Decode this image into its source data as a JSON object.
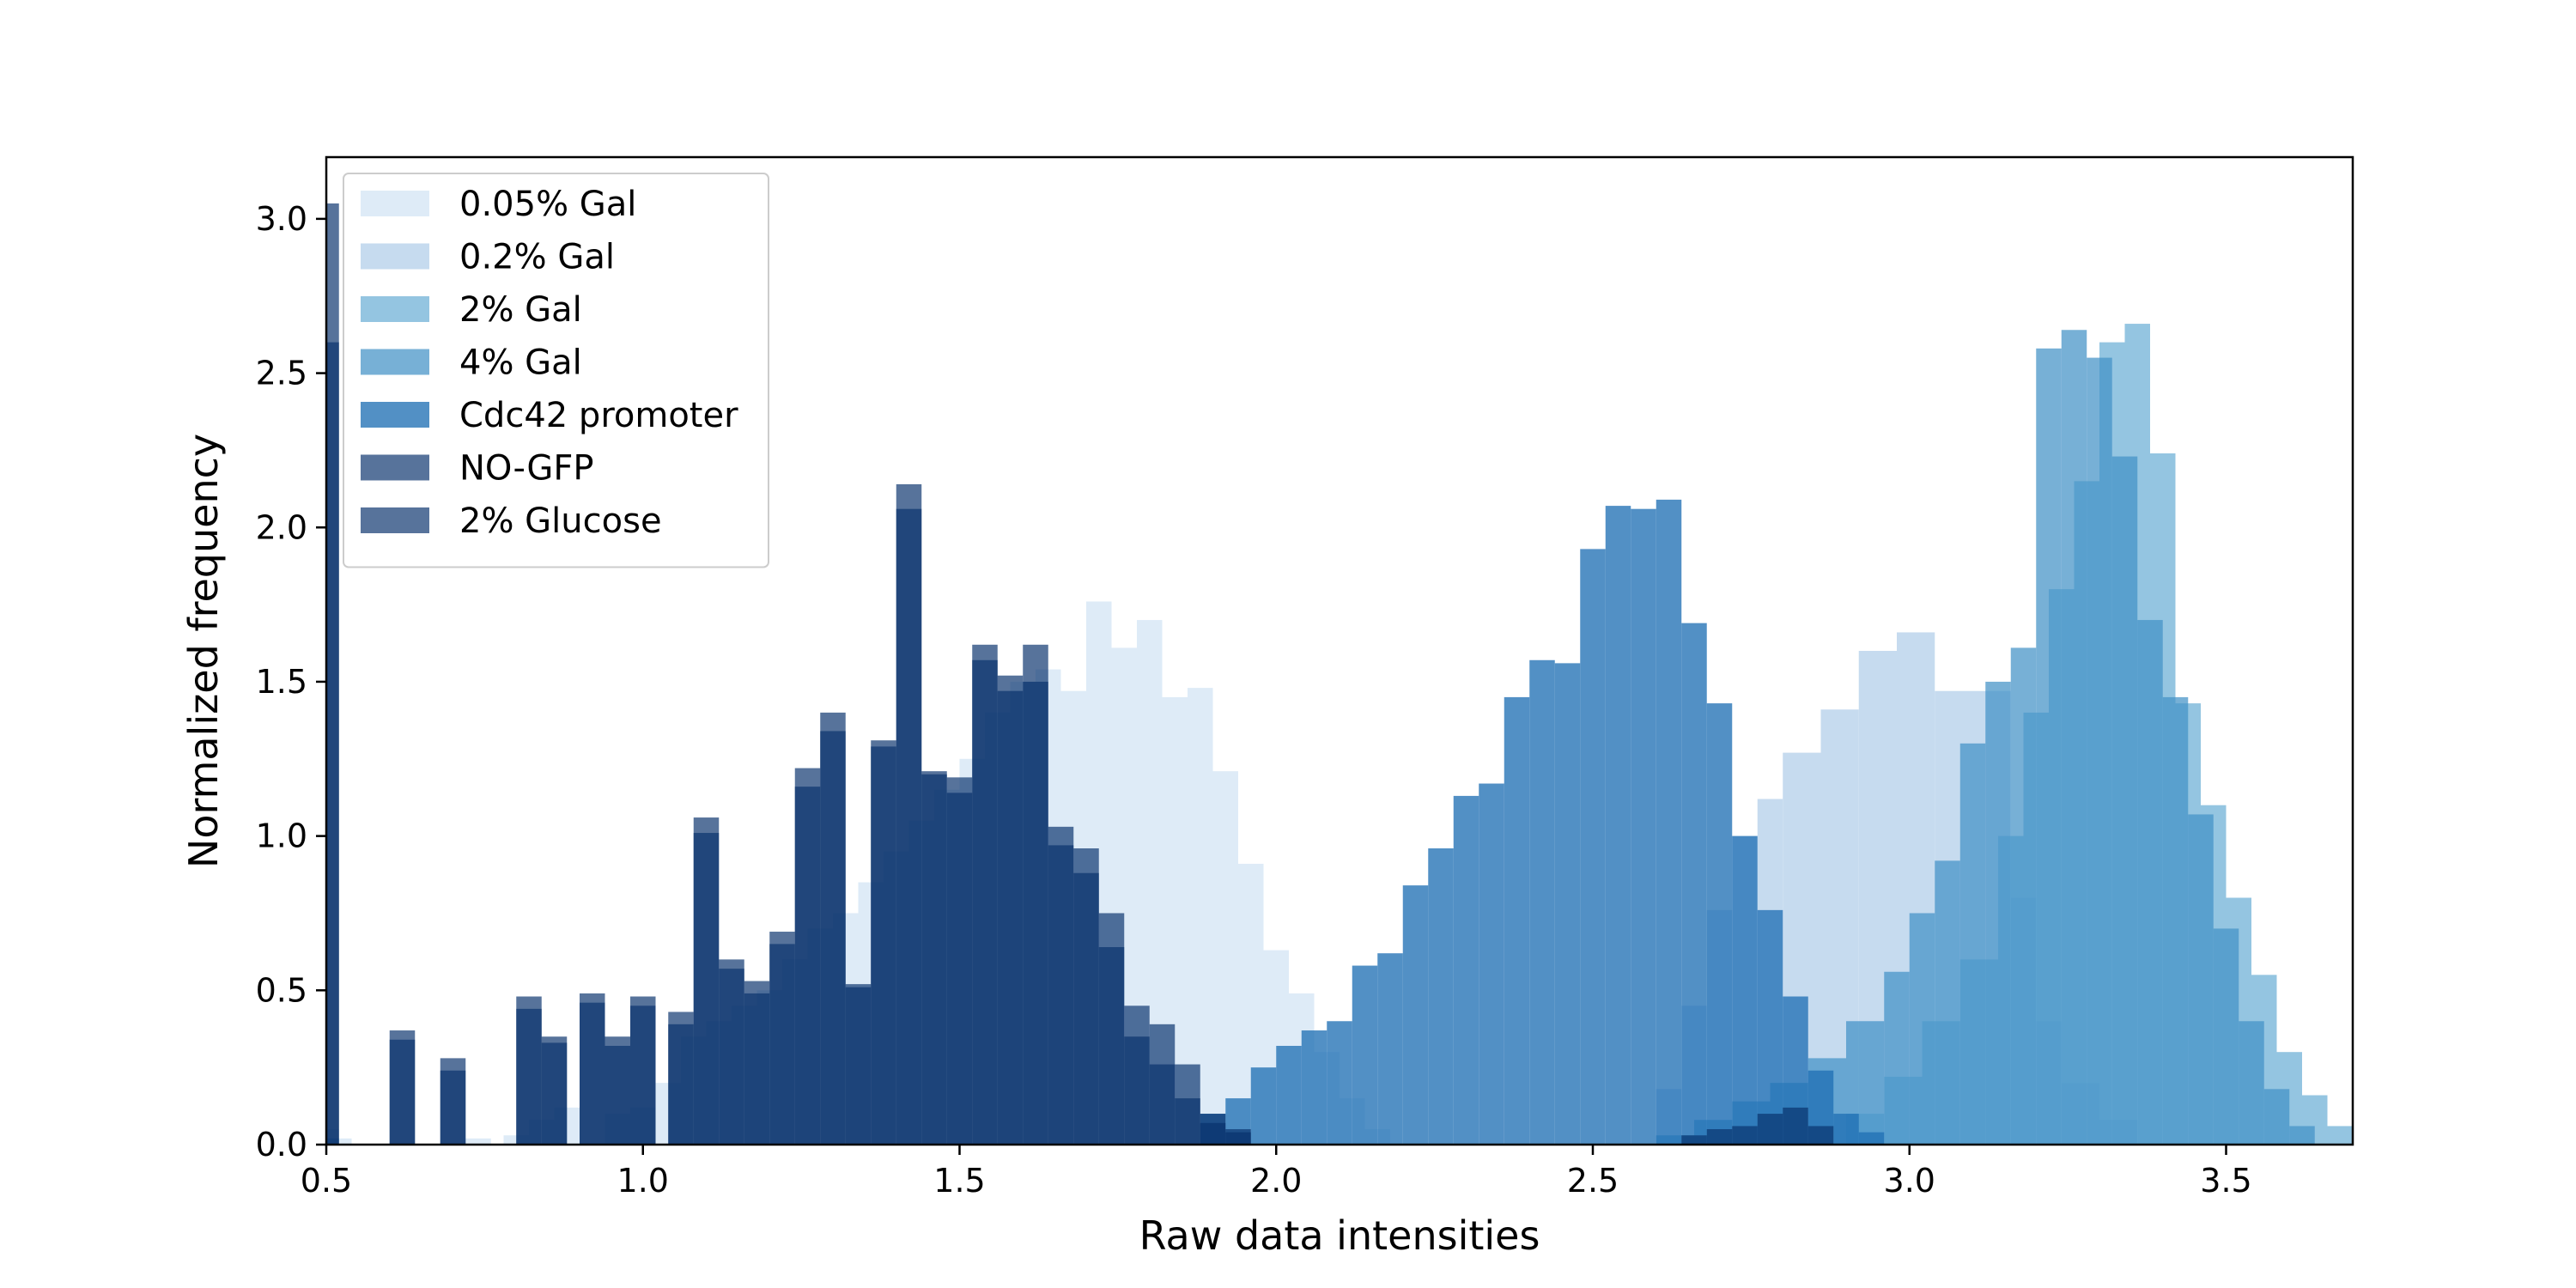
{
  "chart_data": {
    "type": "bar",
    "title": "",
    "xlabel": "Raw data intensities",
    "ylabel": "Normalized frequency",
    "xlim": [
      0.5,
      3.7
    ],
    "ylim": [
      0.0,
      3.2
    ],
    "x_ticks": [
      "0.5",
      "1.0",
      "1.5",
      "2.0",
      "2.5",
      "3.0",
      "3.5"
    ],
    "y_ticks": [
      "0.0",
      "0.5",
      "1.0",
      "1.5",
      "2.0",
      "2.5",
      "3.0"
    ],
    "grid": false,
    "legend_position": "top-left",
    "series": [
      {
        "name": "0.05% Gal",
        "color": "#deebf7",
        "bins": [
          [
            0.5,
            0.52,
            0.05
          ],
          [
            0.52,
            0.54,
            0.02
          ],
          [
            0.72,
            0.76,
            0.02
          ],
          [
            0.78,
            0.82,
            0.03
          ],
          [
            0.82,
            0.86,
            0.08
          ],
          [
            0.86,
            0.9,
            0.12
          ],
          [
            0.94,
            0.98,
            0.1
          ],
          [
            0.98,
            1.02,
            0.12
          ],
          [
            1.02,
            1.06,
            0.2
          ],
          [
            1.06,
            1.1,
            0.35
          ],
          [
            1.1,
            1.14,
            0.4
          ],
          [
            1.14,
            1.18,
            0.45
          ],
          [
            1.18,
            1.22,
            0.5
          ],
          [
            1.22,
            1.26,
            0.6
          ],
          [
            1.26,
            1.3,
            0.7
          ],
          [
            1.3,
            1.34,
            0.75
          ],
          [
            1.34,
            1.38,
            0.85
          ],
          [
            1.38,
            1.42,
            0.95
          ],
          [
            1.42,
            1.46,
            1.05
          ],
          [
            1.46,
            1.5,
            1.15
          ],
          [
            1.5,
            1.54,
            1.25
          ],
          [
            1.54,
            1.58,
            1.4
          ],
          [
            1.58,
            1.62,
            1.5
          ],
          [
            1.62,
            1.66,
            1.54
          ],
          [
            1.66,
            1.7,
            1.47
          ],
          [
            1.7,
            1.74,
            1.76
          ],
          [
            1.74,
            1.78,
            1.61
          ],
          [
            1.78,
            1.82,
            1.7
          ],
          [
            1.82,
            1.86,
            1.45
          ],
          [
            1.86,
            1.9,
            1.48
          ],
          [
            1.9,
            1.94,
            1.21
          ],
          [
            1.94,
            1.98,
            0.91
          ],
          [
            1.98,
            2.02,
            0.63
          ],
          [
            2.02,
            2.06,
            0.49
          ],
          [
            2.06,
            2.1,
            0.3
          ],
          [
            2.1,
            2.14,
            0.15
          ],
          [
            2.14,
            2.18,
            0.05
          ]
        ]
      },
      {
        "name": "0.2% Gal",
        "color": "#c6dbef",
        "bins": [
          [
            2.6,
            2.64,
            0.18
          ],
          [
            2.64,
            2.68,
            0.45
          ],
          [
            2.68,
            2.72,
            0.76
          ],
          [
            2.72,
            2.76,
            1.0
          ],
          [
            2.76,
            2.8,
            1.12
          ],
          [
            2.8,
            2.86,
            1.27
          ],
          [
            2.86,
            2.92,
            1.41
          ],
          [
            2.92,
            2.98,
            1.6
          ],
          [
            2.98,
            3.04,
            1.66
          ],
          [
            3.04,
            3.1,
            1.47
          ],
          [
            3.1,
            3.16,
            1.47
          ],
          [
            3.16,
            3.2,
            0.8
          ],
          [
            3.2,
            3.24,
            0.4
          ],
          [
            3.24,
            3.3,
            0.2
          ],
          [
            3.3,
            3.36,
            0.08
          ]
        ]
      },
      {
        "name": "2% Gal",
        "color": "#6baed6",
        "opacity": 0.72,
        "bins": [
          [
            0.5,
            0.52,
            0.02
          ],
          [
            2.9,
            2.96,
            0.1
          ],
          [
            2.96,
            3.02,
            0.22
          ],
          [
            3.02,
            3.08,
            0.4
          ],
          [
            3.08,
            3.14,
            0.6
          ],
          [
            3.14,
            3.18,
            1.0
          ],
          [
            3.18,
            3.22,
            1.4
          ],
          [
            3.22,
            3.26,
            1.8
          ],
          [
            3.26,
            3.3,
            2.15
          ],
          [
            3.3,
            3.34,
            2.6
          ],
          [
            3.34,
            3.38,
            2.66
          ],
          [
            3.38,
            3.42,
            2.24
          ],
          [
            3.42,
            3.46,
            1.43
          ],
          [
            3.46,
            3.5,
            1.1
          ],
          [
            3.5,
            3.54,
            0.8
          ],
          [
            3.54,
            3.58,
            0.55
          ],
          [
            3.58,
            3.62,
            0.3
          ],
          [
            3.62,
            3.66,
            0.16
          ],
          [
            3.66,
            3.7,
            0.06
          ]
        ]
      },
      {
        "name": "4% Gal",
        "color": "#4292c6",
        "opacity": 0.72,
        "bins": [
          [
            2.6,
            2.66,
            0.03
          ],
          [
            2.66,
            2.72,
            0.08
          ],
          [
            2.72,
            2.78,
            0.14
          ],
          [
            2.78,
            2.84,
            0.2
          ],
          [
            2.84,
            2.9,
            0.28
          ],
          [
            2.9,
            2.96,
            0.4
          ],
          [
            2.96,
            3.0,
            0.56
          ],
          [
            3.0,
            3.04,
            0.75
          ],
          [
            3.04,
            3.08,
            0.92
          ],
          [
            3.08,
            3.12,
            1.3
          ],
          [
            3.12,
            3.16,
            1.5
          ],
          [
            3.16,
            3.2,
            1.61
          ],
          [
            3.2,
            3.24,
            2.58
          ],
          [
            3.24,
            3.28,
            2.64
          ],
          [
            3.28,
            3.32,
            2.55
          ],
          [
            3.32,
            3.36,
            2.23
          ],
          [
            3.36,
            3.4,
            1.7
          ],
          [
            3.4,
            3.44,
            1.45
          ],
          [
            3.44,
            3.48,
            1.07
          ],
          [
            3.48,
            3.52,
            0.7
          ],
          [
            3.52,
            3.56,
            0.4
          ],
          [
            3.56,
            3.6,
            0.18
          ],
          [
            3.6,
            3.64,
            0.06
          ]
        ]
      },
      {
        "name": "Cdc42 promoter",
        "color": "#2171b5",
        "opacity": 0.78,
        "bins": [
          [
            1.88,
            1.92,
            0.1
          ],
          [
            1.92,
            1.96,
            0.15
          ],
          [
            1.96,
            2.0,
            0.25
          ],
          [
            2.0,
            2.04,
            0.32
          ],
          [
            2.04,
            2.08,
            0.37
          ],
          [
            2.08,
            2.12,
            0.4
          ],
          [
            2.12,
            2.16,
            0.58
          ],
          [
            2.16,
            2.2,
            0.62
          ],
          [
            2.2,
            2.24,
            0.84
          ],
          [
            2.24,
            2.28,
            0.96
          ],
          [
            2.28,
            2.32,
            1.13
          ],
          [
            2.32,
            2.36,
            1.17
          ],
          [
            2.36,
            2.4,
            1.45
          ],
          [
            2.4,
            2.44,
            1.57
          ],
          [
            2.44,
            2.48,
            1.56
          ],
          [
            2.48,
            2.52,
            1.93
          ],
          [
            2.52,
            2.56,
            2.07
          ],
          [
            2.56,
            2.6,
            2.06
          ],
          [
            2.6,
            2.64,
            2.09
          ],
          [
            2.64,
            2.68,
            1.69
          ],
          [
            2.68,
            2.72,
            1.43
          ],
          [
            2.72,
            2.76,
            1.0
          ],
          [
            2.76,
            2.8,
            0.76
          ],
          [
            2.8,
            2.84,
            0.48
          ],
          [
            2.84,
            2.88,
            0.24
          ],
          [
            2.88,
            2.92,
            0.1
          ],
          [
            2.92,
            2.96,
            0.04
          ]
        ]
      },
      {
        "name": "NO-GFP",
        "color": "#08306b",
        "opacity": 0.68,
        "bins": [
          [
            0.5,
            0.52,
            2.6
          ],
          [
            0.6,
            0.64,
            0.34
          ],
          [
            0.68,
            0.72,
            0.24
          ],
          [
            0.8,
            0.84,
            0.44
          ],
          [
            0.84,
            0.88,
            0.33
          ],
          [
            0.9,
            0.94,
            0.46
          ],
          [
            0.94,
            0.98,
            0.32
          ],
          [
            0.98,
            1.02,
            0.45
          ],
          [
            1.04,
            1.08,
            0.39
          ],
          [
            1.08,
            1.12,
            1.01
          ],
          [
            1.12,
            1.16,
            0.57
          ],
          [
            1.16,
            1.2,
            0.49
          ],
          [
            1.2,
            1.24,
            0.65
          ],
          [
            1.24,
            1.28,
            1.16
          ],
          [
            1.28,
            1.32,
            1.34
          ],
          [
            1.32,
            1.36,
            0.51
          ],
          [
            1.36,
            1.4,
            1.29
          ],
          [
            1.4,
            1.44,
            2.06
          ],
          [
            1.44,
            1.48,
            1.2
          ],
          [
            1.48,
            1.52,
            1.14
          ],
          [
            1.52,
            1.56,
            1.57
          ],
          [
            1.56,
            1.6,
            1.47
          ],
          [
            1.6,
            1.64,
            1.5
          ],
          [
            1.64,
            1.68,
            0.97
          ],
          [
            1.68,
            1.72,
            0.88
          ],
          [
            1.72,
            1.76,
            0.64
          ],
          [
            1.76,
            1.8,
            0.35
          ],
          [
            1.8,
            1.84,
            0.26
          ],
          [
            1.84,
            1.88,
            0.15
          ],
          [
            1.88,
            1.92,
            0.07
          ],
          [
            1.92,
            1.96,
            0.04
          ]
        ]
      },
      {
        "name": "2% Glucose",
        "color": "#08306b",
        "opacity": 0.68,
        "bins": [
          [
            0.5,
            0.52,
            3.05
          ],
          [
            0.6,
            0.64,
            0.37
          ],
          [
            0.68,
            0.72,
            0.28
          ],
          [
            0.8,
            0.84,
            0.48
          ],
          [
            0.84,
            0.88,
            0.35
          ],
          [
            0.9,
            0.94,
            0.49
          ],
          [
            0.94,
            0.98,
            0.35
          ],
          [
            0.98,
            1.02,
            0.48
          ],
          [
            1.04,
            1.08,
            0.43
          ],
          [
            1.08,
            1.12,
            1.06
          ],
          [
            1.12,
            1.16,
            0.6
          ],
          [
            1.16,
            1.2,
            0.53
          ],
          [
            1.2,
            1.24,
            0.69
          ],
          [
            1.24,
            1.28,
            1.22
          ],
          [
            1.28,
            1.32,
            1.4
          ],
          [
            1.32,
            1.36,
            0.52
          ],
          [
            1.36,
            1.4,
            1.31
          ],
          [
            1.4,
            1.44,
            2.14
          ],
          [
            1.44,
            1.48,
            1.21
          ],
          [
            1.48,
            1.52,
            1.19
          ],
          [
            1.52,
            1.56,
            1.62
          ],
          [
            1.56,
            1.6,
            1.52
          ],
          [
            1.6,
            1.64,
            1.62
          ],
          [
            1.64,
            1.68,
            1.03
          ],
          [
            1.68,
            1.72,
            0.96
          ],
          [
            1.72,
            1.76,
            0.75
          ],
          [
            1.76,
            1.8,
            0.45
          ],
          [
            1.8,
            1.84,
            0.39
          ],
          [
            1.84,
            1.88,
            0.26
          ],
          [
            1.88,
            1.92,
            0.1
          ],
          [
            1.92,
            1.96,
            0.05
          ],
          [
            2.64,
            2.68,
            0.03
          ],
          [
            2.68,
            2.72,
            0.05
          ],
          [
            2.72,
            2.76,
            0.06
          ],
          [
            2.76,
            2.8,
            0.1
          ],
          [
            2.8,
            2.84,
            0.12
          ],
          [
            2.84,
            2.88,
            0.06
          ]
        ]
      }
    ]
  }
}
